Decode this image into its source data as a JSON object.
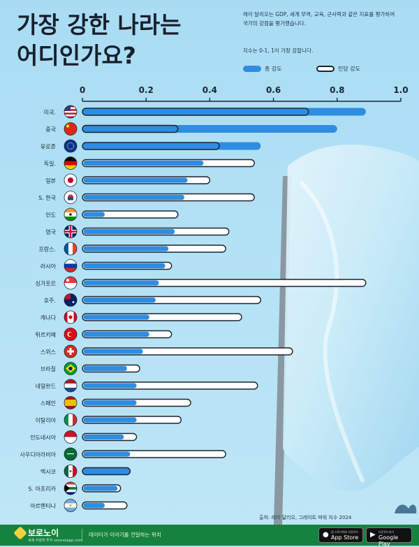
{
  "header": {
    "title_line1": "가장 강한 나라는",
    "title_line2": "어디인가요?",
    "note_line1": "레이 달리오는 GDP, 세계 무역, 교육, 군사력과 같은 지표를 평가하여",
    "note_line2": "국가의 강점을 평가했습니다.",
    "scale_note": "지수는 0-1, 1이 가장 강합니다."
  },
  "legend": {
    "total": "총 강도",
    "per_capita": "인당 강도"
  },
  "colors": {
    "total_bar": "#2e8de0",
    "per_capita_bar": "#ffffff",
    "outline": "#1b2530",
    "footer_green": "#16823f"
  },
  "chart_data": {
    "type": "bar",
    "orientation": "horizontal",
    "xlim": [
      0,
      1.0
    ],
    "xticks": [
      "0",
      "0.2",
      "0.4",
      "0.6",
      "0.8",
      "1.0"
    ],
    "grid": false,
    "legend_position": "top-right",
    "categories": [
      "미국.",
      "중국",
      "유로존",
      "독일.",
      "일본",
      "S. 한국",
      "인도",
      "영국",
      "프랑스.",
      "러시아",
      "싱가포르",
      "호주.",
      "캐나다",
      "튀르키예",
      "스위스",
      "브라질",
      "네덜란드",
      "스페인",
      "이탈리아",
      "인도네시아",
      "사우디아라비아",
      "멕시코",
      "S. 아프리카",
      "아르헨티나"
    ],
    "flags": [
      "us",
      "cn",
      "eu",
      "de",
      "jp",
      "kr",
      "in",
      "gb",
      "fr",
      "ru",
      "sg",
      "au",
      "ca",
      "tr",
      "ch",
      "br",
      "nl",
      "es",
      "it",
      "id",
      "sa",
      "mx",
      "za",
      "ar"
    ],
    "series": [
      {
        "name": "총 강도",
        "values": [
          0.89,
          0.8,
          0.56,
          0.38,
          0.33,
          0.32,
          0.07,
          0.29,
          0.27,
          0.26,
          0.24,
          0.23,
          0.21,
          0.21,
          0.19,
          0.14,
          0.17,
          0.17,
          0.17,
          0.13,
          0.15,
          0.15,
          0.11,
          0.07
        ]
      },
      {
        "name": "인당 강도",
        "values": [
          0.71,
          0.3,
          0.43,
          0.54,
          0.4,
          0.54,
          0.3,
          0.46,
          0.45,
          0.28,
          0.89,
          0.56,
          0.5,
          0.28,
          0.66,
          0.18,
          0.55,
          0.34,
          0.31,
          0.17,
          0.45,
          0.15,
          0.12,
          0.14
        ]
      }
    ]
  },
  "source": "출처: 레이 달리오, 그레이트 파워 지수 2024",
  "footer": {
    "brand": "보로노이",
    "brand_sub": "세계 지정학 투자 voronoiapp.com",
    "tagline": "데이터가 이야기를 전달하는 위치",
    "app_store_small": "앱 스토어에서 다운로드",
    "app_store": "App Store",
    "google_small": "다운로드하기",
    "google_play": "Google Play"
  }
}
